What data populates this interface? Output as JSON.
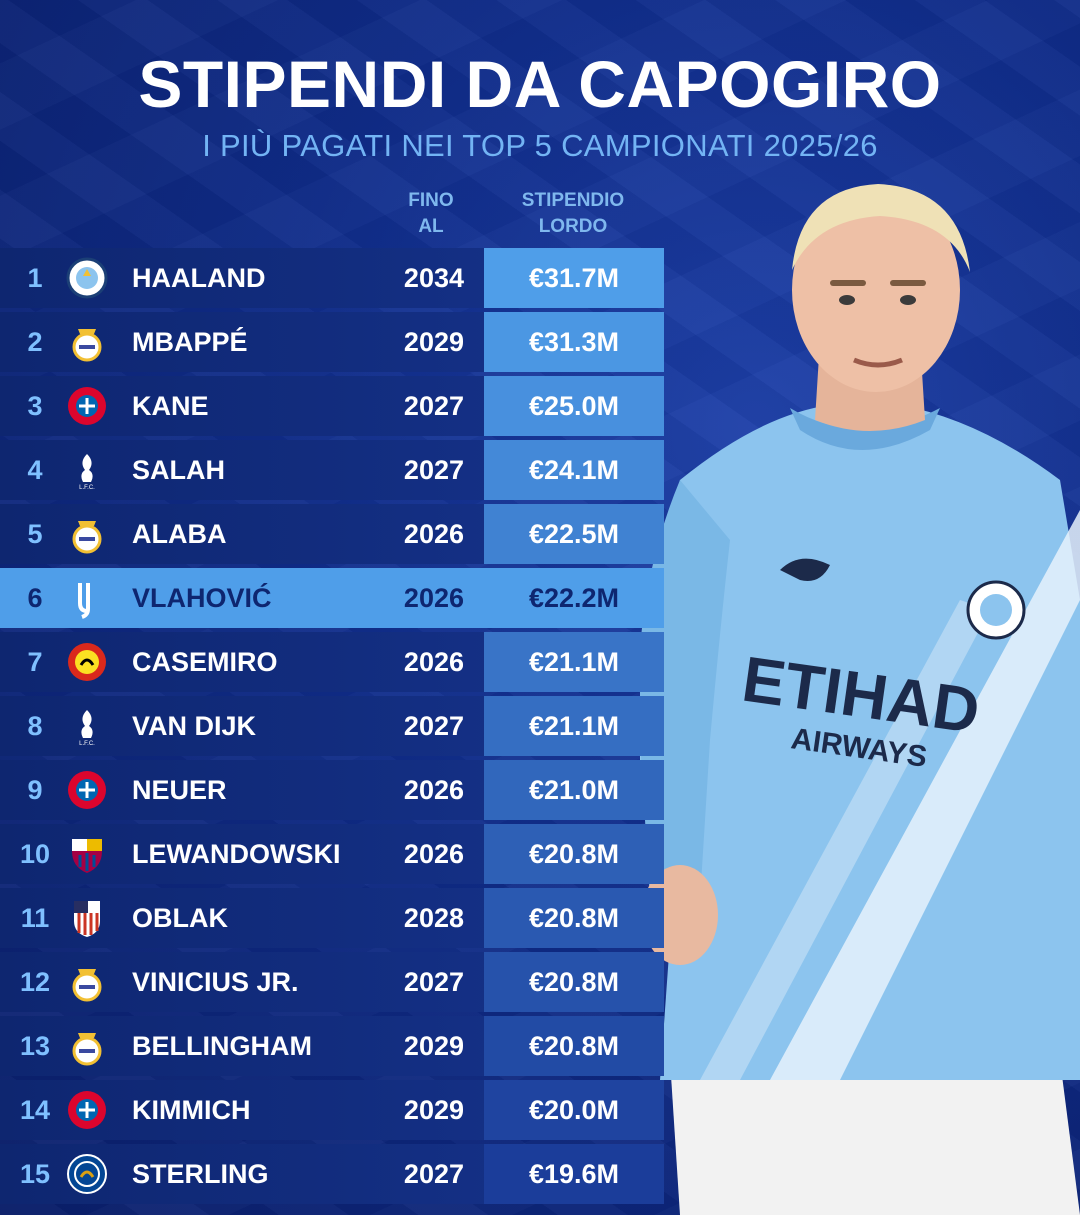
{
  "title": "STIPENDI DA CAPOGIRO",
  "subtitle": "I PIÙ PAGATI NEI TOP 5 CAMPIONATI 2025/26",
  "headers": {
    "fino_al_1": "FINO",
    "fino_al_2": "AL",
    "stipendio_1": "STIPENDIO",
    "stipendio_2": "LORDO"
  },
  "jersey": {
    "sponsor_1": "ETIHAD",
    "sponsor_2": "AIRWAYS"
  },
  "colors": {
    "background": "#0f2c8a",
    "row": "#16338c",
    "highlight_row": "#4f9ee9",
    "accent": "#73b4f4",
    "salary_cell_top": "#4f9ee9",
    "salary_cell_bottom": "#1b3d9a"
  },
  "rows": [
    {
      "rank": "1",
      "club": "manchester-city",
      "crest_icon": "man-city-crest-icon",
      "name": "HAALAND",
      "until": "2034",
      "salary": "€31.7M",
      "highlight": false
    },
    {
      "rank": "2",
      "club": "real-madrid",
      "crest_icon": "real-madrid-crest-icon",
      "name": "MBAPPÉ",
      "until": "2029",
      "salary": "€31.3M",
      "highlight": false
    },
    {
      "rank": "3",
      "club": "bayern",
      "crest_icon": "bayern-crest-icon",
      "name": "KANE",
      "until": "2027",
      "salary": "€25.0M",
      "highlight": false
    },
    {
      "rank": "4",
      "club": "liverpool",
      "crest_icon": "liverpool-crest-icon",
      "name": "SALAH",
      "until": "2027",
      "salary": "€24.1M",
      "highlight": false
    },
    {
      "rank": "5",
      "club": "real-madrid",
      "crest_icon": "real-madrid-crest-icon",
      "name": "ALABA",
      "until": "2026",
      "salary": "€22.5M",
      "highlight": false
    },
    {
      "rank": "6",
      "club": "juventus",
      "crest_icon": "juventus-crest-icon",
      "name": "VLAHOVIĆ",
      "until": "2026",
      "salary": "€22.2M",
      "highlight": true
    },
    {
      "rank": "7",
      "club": "manchester-united",
      "crest_icon": "man-united-crest-icon",
      "name": "CASEMIRO",
      "until": "2026",
      "salary": "€21.1M",
      "highlight": false
    },
    {
      "rank": "8",
      "club": "liverpool",
      "crest_icon": "liverpool-crest-icon",
      "name": "VAN DIJK",
      "until": "2027",
      "salary": "€21.1M",
      "highlight": false
    },
    {
      "rank": "9",
      "club": "bayern",
      "crest_icon": "bayern-crest-icon",
      "name": "NEUER",
      "until": "2026",
      "salary": "€21.0M",
      "highlight": false
    },
    {
      "rank": "10",
      "club": "barcelona",
      "crest_icon": "barcelona-crest-icon",
      "name": "LEWANDOWSKI",
      "until": "2026",
      "salary": "€20.8M",
      "highlight": false
    },
    {
      "rank": "11",
      "club": "atletico",
      "crest_icon": "atletico-crest-icon",
      "name": "OBLAK",
      "until": "2028",
      "salary": "€20.8M",
      "highlight": false
    },
    {
      "rank": "12",
      "club": "real-madrid",
      "crest_icon": "real-madrid-crest-icon",
      "name": "VINICIUS JR.",
      "until": "2027",
      "salary": "€20.8M",
      "highlight": false
    },
    {
      "rank": "13",
      "club": "real-madrid",
      "crest_icon": "real-madrid-crest-icon",
      "name": "BELLINGHAM",
      "until": "2029",
      "salary": "€20.8M",
      "highlight": false
    },
    {
      "rank": "14",
      "club": "bayern",
      "crest_icon": "bayern-crest-icon",
      "name": "KIMMICH",
      "until": "2029",
      "salary": "€20.0M",
      "highlight": false
    },
    {
      "rank": "15",
      "club": "chelsea",
      "crest_icon": "chelsea-crest-icon",
      "name": "STERLING",
      "until": "2027",
      "salary": "€19.6M",
      "highlight": false
    }
  ]
}
